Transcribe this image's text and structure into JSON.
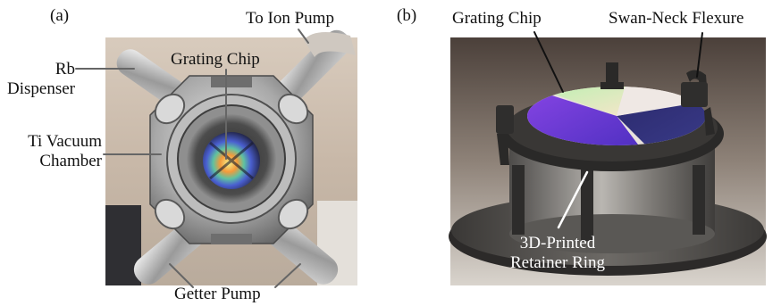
{
  "figure": {
    "panel_a": {
      "tag": "(a)",
      "labels": {
        "rb_line1": "Rb",
        "rb_line2": "Dispenser",
        "ti_line1": "Ti Vacuum",
        "ti_line2": "Chamber",
        "grating_chip": "Grating Chip",
        "to_ion_pump": "To Ion Pump",
        "getter_pump": "Getter Pump"
      }
    },
    "panel_b": {
      "tag": "(b)",
      "labels": {
        "grating_chip": "Grating Chip",
        "swan_neck": "Swan-Neck Flexure",
        "ring_line1": "3D-Printed",
        "ring_line2": "Retainer Ring"
      }
    }
  }
}
